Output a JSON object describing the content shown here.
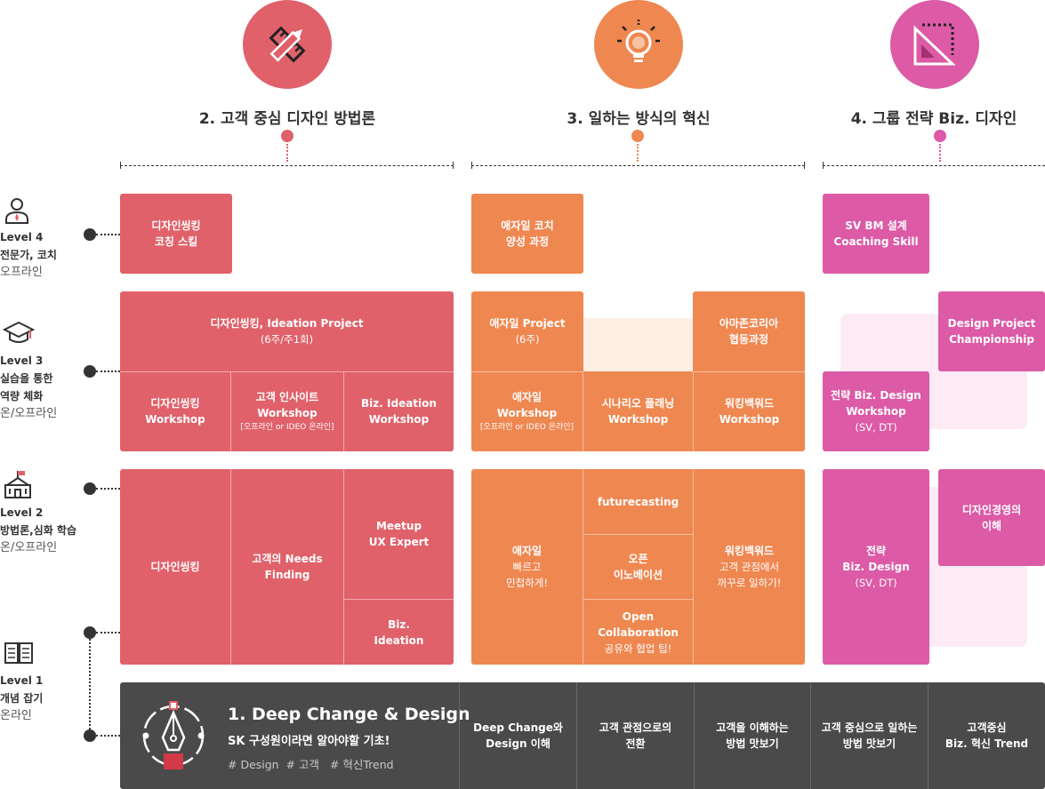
{
  "columns": [
    {
      "title": "2. 고객 중심 디자인 방법론",
      "icon": "ruler-pencil-icon",
      "color": "#e0616a"
    },
    {
      "title": "3. 일하는 방식의 혁신",
      "icon": "lightbulb-icon",
      "color": "#ef8751"
    },
    {
      "title": "4. 그룹 전략 Biz. 디자인",
      "icon": "triangle-ruler-icon",
      "color": "#dc5aa6"
    }
  ],
  "levels": [
    {
      "level": "Level 4",
      "name": "전문가, 코치",
      "mode": "오프라인",
      "icon": "person-icon"
    },
    {
      "level": "Level 3",
      "name1": "실습을 통한",
      "name2": "역량 체화",
      "mode": "온/오프라인",
      "icon": "graduation-cap-icon"
    },
    {
      "level": "Level 2",
      "name": "방법론,심화 학습",
      "mode": "온/오프라인",
      "icon": "school-icon"
    },
    {
      "level": "Level 1",
      "name": "개념 잡기",
      "mode": "온라인",
      "icon": "book-icon"
    }
  ],
  "l4": {
    "red": [
      "디자인씽킹",
      "코칭 스킬"
    ],
    "org": [
      "애자일 코치",
      "양성 과정"
    ],
    "pink": [
      "SV BM 설계",
      "Coaching Skill"
    ]
  },
  "l3": {
    "red_top": {
      "title": "디자인씽킹, Ideation Project",
      "sub": "(6주/주1회)"
    },
    "red_1": [
      "디자인씽킹",
      "Workshop"
    ],
    "red_2": {
      "l1": "고객 인사이트",
      "l2": "Workshop",
      "sub": "[오프라인 or  IDEO 온라인]"
    },
    "red_3": [
      "Biz. Ideation",
      "Workshop"
    ],
    "org_top_left": {
      "title": "애자일 Project",
      "sub": "(6주)"
    },
    "org_top_right": [
      "아마존코리아",
      "협동과정"
    ],
    "org_1": {
      "l1": "애자일",
      "l2": "Workshop",
      "sub": "[오프라인 or  IDEO 온라인]"
    },
    "org_2": [
      "시나리오 플래닝",
      "Workshop"
    ],
    "org_3": [
      "워킹백워드",
      "Workshop"
    ],
    "pink_right": [
      "Design Project",
      "Championship"
    ],
    "pink_left": {
      "l1": "전략 Biz. Design",
      "l2": "Workshop",
      "sub": "(SV, DT)"
    }
  },
  "l2": {
    "red_1": "디자인씽킹",
    "red_2": [
      "고객의 Needs",
      "Finding"
    ],
    "red_3": [
      "Meetup",
      "UX Expert"
    ],
    "red_4": [
      "Biz.",
      "Ideation"
    ],
    "org_1": {
      "title": "애자일",
      "sub1": "빠르고",
      "sub2": "민첩하게!"
    },
    "org_2": "futurecasting",
    "org_3": [
      "오픈",
      "이노베이션"
    ],
    "org_4": {
      "l1": "Open",
      "l2": "Collaboration",
      "sub": "공유와 협업 팁!"
    },
    "org_5": {
      "title": "워킹백워드",
      "sub1": "고객 관점에서",
      "sub2": "꺼꾸로 일하기!"
    },
    "pink_left": {
      "l1": "전략",
      "l2": "Biz. Design",
      "sub": "(SV, DT)"
    },
    "pink_right": [
      "디자인경영의",
      "이해"
    ]
  },
  "l1": {
    "title": "1. Deep Change & Design",
    "subtitle": "SK 구성원이라면 알아야할 기초!",
    "tags": "# Design  # 고객   # 혁신Trend",
    "icon": "pen-nib-icon",
    "cells": [
      [
        "Deep Change와",
        "Design 이해"
      ],
      [
        "고객 관점으로의",
        "전환"
      ],
      [
        "고객을 이해하는",
        "방법 맛보기"
      ],
      [
        "고객 중심으로 일하는",
        "방법 맛보기"
      ],
      [
        "고객중심",
        "Biz. 혁신 Trend"
      ]
    ]
  }
}
